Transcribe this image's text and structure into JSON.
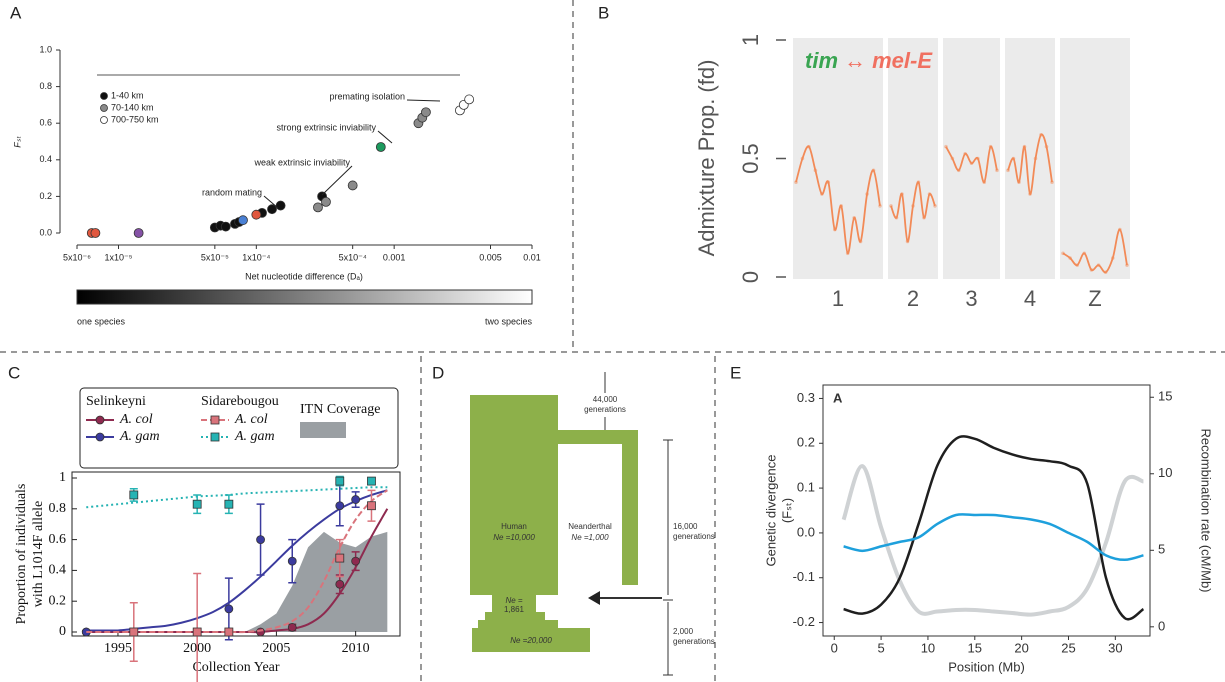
{
  "panel_labels": [
    "A",
    "B",
    "C",
    "D",
    "E"
  ],
  "chart_data": [
    {
      "type": "scatter",
      "ylabel": "Fₛₜ",
      "xlabel": "Net nucleotide difference (Dₐ)",
      "log_x": true,
      "xlim": [
        5e-06,
        0.01
      ],
      "xticks": [
        {
          "value": 5e-06,
          "label": "5x10⁻⁶"
        },
        {
          "value": 1e-05,
          "label": "1x10⁻⁵"
        },
        {
          "value": 5e-05,
          "label": "5x10⁻⁵"
        },
        {
          "value": 0.0001,
          "label": "1x10⁻⁴"
        },
        {
          "value": 0.0005,
          "label": "5x10⁻⁴"
        },
        0.001,
        0.005,
        0.01
      ],
      "ylim": [
        0,
        1
      ],
      "yticks": [
        {
          "value": 0,
          "label": "0.0"
        },
        0.2,
        0.4,
        0.6,
        0.8,
        {
          "value": 1,
          "label": "1.0"
        }
      ],
      "series": [
        {
          "name": "1-40 km",
          "color": "#111111",
          "x": [
            5e-05,
            5.5e-05,
            6e-05,
            7e-05,
            7.5e-05,
            0.00011,
            0.00013,
            0.00015,
            0.0003
          ],
          "values": [
            0.03,
            0.04,
            0.035,
            0.05,
            0.06,
            0.11,
            0.13,
            0.15,
            0.2
          ]
        },
        {
          "name": "70-140 km",
          "color": "#8a8a8a",
          "x": [
            0.00028,
            0.00032,
            0.0005,
            0.0015,
            0.0016,
            0.0017
          ],
          "values": [
            0.14,
            0.17,
            0.26,
            0.6,
            0.63,
            0.66
          ]
        },
        {
          "name": "700-750 km",
          "color": "#ffffff",
          "x": [
            0.003,
            0.0032,
            0.0035
          ],
          "values": [
            0.67,
            0.7,
            0.73
          ]
        },
        {
          "color": "#e0573e",
          "x": [
            6.4e-06,
            6.8e-06,
            0.0001
          ],
          "values": [
            0,
            0,
            0.1
          ]
        },
        {
          "color": "#8552a6",
          "x": [
            1.4e-05
          ],
          "values": [
            0
          ]
        },
        {
          "color": "#4a80d4",
          "x": [
            8e-05
          ],
          "values": [
            0.07
          ]
        },
        {
          "color": "#1c9a5e",
          "x": [
            0.0008
          ],
          "values": [
            0.47
          ]
        }
      ],
      "annotations": [
        "premating isolation",
        "strong extrinsic inviability",
        "weak extrinsic inviability",
        "random mating"
      ],
      "scale_labels": [
        "one species",
        "two species"
      ],
      "gradient": [
        "#000000",
        "#ffffff"
      ]
    },
    {
      "type": "facet",
      "ylabel": "Admixture Prop. (fd)",
      "annotation": [
        "tim",
        "↔ mel-E"
      ],
      "annotation_colors": [
        "#3aa552",
        "#f07060"
      ],
      "ylim": [
        0,
        1
      ],
      "yticks": [
        0,
        0.5,
        1
      ],
      "categories": [
        "1",
        "2",
        "3",
        "4",
        "Z"
      ],
      "color": "#f28a57",
      "values": [
        [
          0.4,
          0.5,
          0.55,
          0.45,
          0.35,
          0.4,
          0.2,
          0.3,
          0.1,
          0.25,
          0.15,
          0.35,
          0.45,
          0.3
        ],
        [
          0.3,
          0.25,
          0.35,
          0.15,
          0.3,
          0.4,
          0.25,
          0.35,
          0.3
        ],
        [
          0.55,
          0.5,
          0.45,
          0.52,
          0.48,
          0.5,
          0.4,
          0.55,
          0.45
        ],
        [
          0.45,
          0.5,
          0.4,
          0.55,
          0.35,
          0.5,
          0.6,
          0.55,
          0.4
        ],
        [
          0.1,
          0.08,
          0.05,
          0.1,
          0.03,
          0.05,
          0.02,
          0.08,
          0.2,
          0.05
        ]
      ]
    },
    {
      "type": "errorbar",
      "xlabel": "Collection Year",
      "ylabel": [
        "Proportion of individuals",
        "with L1014F allele"
      ],
      "xlim": [
        1992.1,
        2012.8
      ],
      "ylim": [
        -0.026,
        1.039
      ],
      "xticks": [
        1995,
        2000,
        2005,
        2010
      ],
      "yticks": [
        0,
        0.2,
        0.4,
        0.6,
        0.8,
        1
      ],
      "fit_x": [
        1993,
        1994,
        1995,
        1996,
        1997,
        1998,
        1999,
        2000,
        2001,
        2002,
        2003,
        2004,
        2005,
        2006,
        2007,
        2008,
        2009,
        2010,
        2011,
        2012
      ],
      "groups": [
        {
          "name": "Selinkeyni",
          "series": [
            {
              "name": "A. col",
              "color": "#8e2a4f",
              "marker": "circle",
              "dash": "solid",
              "x": [
                1993,
                2002,
                2004,
                2006,
                2009,
                2010
              ],
              "values": [
                0,
                0,
                0,
                0.03,
                0.31,
                0.46
              ],
              "errors": [
                null,
                null,
                null,
                0.02,
                0.06,
                0.06
              ],
              "fit": [
                0,
                0,
                0,
                0,
                0,
                0,
                0,
                0,
                0,
                0,
                0,
                0,
                0.01,
                0.02,
                0.05,
                0.12,
                0.25,
                0.42,
                0.62,
                0.8
              ]
            },
            {
              "name": "A. gam",
              "color": "#3b3b9e",
              "marker": "circle",
              "dash": "solid",
              "x": [
                1993,
                2002,
                2004,
                2006,
                2009,
                2010
              ],
              "values": [
                0,
                0.15,
                0.6,
                0.46,
                0.82,
                0.86
              ],
              "errors": [
                null,
                0.2,
                0.23,
                0.14,
                0.13,
                0.05
              ],
              "fit": [
                0.01,
                0.01,
                0.01,
                0.02,
                0.03,
                0.04,
                0.06,
                0.09,
                0.13,
                0.19,
                0.27,
                0.36,
                0.46,
                0.56,
                0.65,
                0.73,
                0.8,
                0.85,
                0.89,
                0.92
              ]
            }
          ]
        },
        {
          "name": "Sidarebougou",
          "series": [
            {
              "name": "A. col",
              "color": "#d9737b",
              "marker": "square",
              "dash": "dashed",
              "x": [
                1996,
                2000,
                2002,
                2009,
                2011
              ],
              "values": [
                0,
                0,
                0,
                0.48,
                0.82
              ],
              "errors": [
                0.19,
                0.38,
                null,
                0.12,
                0.1
              ],
              "fit": [
                0,
                0,
                0,
                0,
                0,
                0,
                0,
                0,
                0,
                0,
                0,
                0.01,
                0.03,
                0.07,
                0.16,
                0.33,
                0.55,
                0.73,
                0.85,
                0.92
              ]
            },
            {
              "name": "A. gam",
              "color": "#26b3b3",
              "marker": "square",
              "dash": "dotted",
              "x": [
                1996,
                2000,
                2002,
                2009,
                2011
              ],
              "values": [
                0.89,
                0.83,
                0.83,
                0.98,
                0.98
              ],
              "errors": [
                0.04,
                0.06,
                0.06,
                0.03,
                0.02
              ],
              "fit": [
                0.81,
                0.82,
                0.83,
                0.84,
                0.85,
                0.86,
                0.87,
                0.88,
                0.885,
                0.89,
                0.9,
                0.905,
                0.91,
                0.915,
                0.92,
                0.925,
                0.93,
                0.935,
                0.94,
                0.94
              ]
            }
          ]
        }
      ],
      "area": {
        "name": "ITN Coverage",
        "color": "#9a9fa3",
        "x": [
          2003,
          2004,
          2005,
          2006,
          2007,
          2008,
          2009,
          2010,
          2011,
          2012
        ],
        "values": [
          0,
          0.05,
          0.12,
          0.3,
          0.55,
          0.65,
          0.58,
          0.55,
          0.62,
          0.65
        ]
      }
    },
    {
      "type": "line",
      "inset_label": "A",
      "xlabel": "Position (Mb)",
      "ylabel": [
        "Genetic divergence",
        "(Fₛₜ)"
      ],
      "y2label": "Recombination rate (cM/Mb)",
      "xlim": [
        -1.2,
        33.7
      ],
      "ylim": [
        -0.23,
        0.33
      ],
      "y2lim": [
        -0.6,
        15.8
      ],
      "xticks": [
        0,
        5,
        10,
        15,
        20,
        25,
        30
      ],
      "yticks": [
        0.3,
        0.2,
        0.1,
        {
          "value": 0,
          "label": "0.0"
        },
        -0.1,
        -0.2
      ],
      "y2ticks": [
        0,
        5,
        10,
        15
      ],
      "x": [
        1,
        3,
        5,
        7,
        9,
        11,
        13,
        15,
        17,
        19,
        21,
        23,
        25,
        27,
        29,
        31,
        33
      ],
      "series": [
        {
          "color": "#cfd2d4",
          "axis": "y2",
          "values": [
            7,
            10.5,
            6.5,
            3,
            1,
            1,
            1.1,
            1.1,
            1,
            0.9,
            0.8,
            1,
            1.3,
            2.5,
            5.5,
            9.5,
            9.5
          ]
        },
        {
          "color": "#1f1f1f",
          "values": [
            -0.17,
            -0.18,
            -0.16,
            -0.1,
            0.02,
            0.15,
            0.21,
            0.21,
            0.19,
            0.175,
            0.165,
            0.16,
            0.15,
            0.11,
            -0.1,
            -0.19,
            -0.17
          ]
        },
        {
          "color": "#1ea0dc",
          "values": [
            -0.03,
            -0.04,
            -0.03,
            -0.02,
            -0.01,
            0.02,
            0.04,
            0.04,
            0.04,
            0.035,
            0.03,
            0.02,
            0,
            -0.02,
            -0.05,
            -0.06,
            -0.05
          ]
        }
      ]
    }
  ],
  "diagram": {
    "populations": [
      {
        "name": "Human",
        "ne": "Ne =10,000"
      },
      {
        "name": "Neanderthal",
        "ne": "Ne =1,000"
      }
    ],
    "bottleneck": [
      "Ne =",
      "1,861"
    ],
    "ancestral": "Ne =20,000",
    "intervals": [
      [
        "44,000",
        "generations"
      ],
      [
        "16,000",
        "generations"
      ],
      [
        "2,000",
        "generations"
      ]
    ]
  }
}
